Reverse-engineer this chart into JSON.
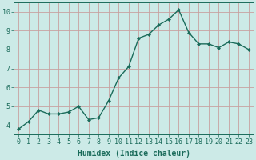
{
  "x": [
    0,
    1,
    2,
    3,
    4,
    5,
    6,
    7,
    8,
    9,
    10,
    11,
    12,
    13,
    14,
    15,
    16,
    17,
    18,
    19,
    20,
    21,
    22,
    23
  ],
  "y": [
    3.8,
    4.2,
    4.8,
    4.6,
    4.6,
    4.7,
    5.0,
    4.3,
    4.4,
    5.3,
    6.5,
    7.1,
    8.6,
    8.8,
    9.3,
    9.6,
    10.1,
    8.9,
    8.3,
    8.3,
    8.1,
    8.4,
    8.3,
    8.0
  ],
  "line_color": "#1a6b5a",
  "marker": "D",
  "marker_size": 2.0,
  "line_width": 1.0,
  "bg_color": "#cceae7",
  "grid_color": "#c8a0a0",
  "xlabel": "Humidex (Indice chaleur)",
  "xlabel_color": "#1a6b5a",
  "xlabel_fontsize": 7,
  "tick_color": "#1a6b5a",
  "tick_fontsize": 6,
  "ylim": [
    3.5,
    10.5
  ],
  "xlim": [
    -0.5,
    23.5
  ],
  "yticks": [
    4,
    5,
    6,
    7,
    8,
    9,
    10
  ],
  "xticks": [
    0,
    1,
    2,
    3,
    4,
    5,
    6,
    7,
    8,
    9,
    10,
    11,
    12,
    13,
    14,
    15,
    16,
    17,
    18,
    19,
    20,
    21,
    22,
    23
  ]
}
